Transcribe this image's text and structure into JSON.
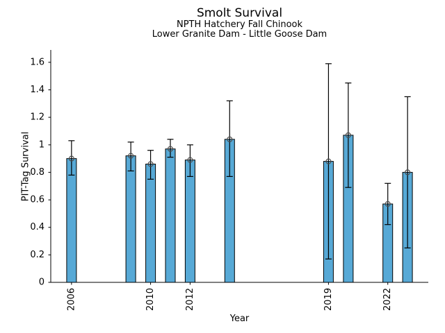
{
  "chart_data": {
    "type": "bar",
    "title": "Smolt Survival",
    "subtitle_line1": "NPTH Hatchery Fall Chinook",
    "subtitle_line2": "Lower Granite Dam - Little Goose Dam",
    "xlabel": "Year",
    "ylabel": "PIT-Tag Survival",
    "categories": [
      2006,
      2009,
      2010,
      2011,
      2012,
      2014,
      2019,
      2020,
      2022,
      2023
    ],
    "values": [
      0.9,
      0.92,
      0.86,
      0.97,
      0.89,
      1.04,
      0.88,
      1.07,
      0.57,
      0.8
    ],
    "error_low": [
      0.78,
      0.81,
      0.75,
      0.91,
      0.77,
      0.77,
      0.17,
      0.69,
      0.42,
      0.25
    ],
    "error_high": [
      1.03,
      1.02,
      0.96,
      1.04,
      1.0,
      1.32,
      1.59,
      1.45,
      0.72,
      1.35
    ],
    "xtick_years": [
      2006,
      2010,
      2012,
      2019,
      2022
    ],
    "ytick_values": [
      0,
      0.2,
      0.4,
      0.6,
      0.8,
      1,
      1.2,
      1.4,
      1.6
    ],
    "ytick_labels": [
      "0",
      "0.2",
      "0.4",
      "0.6",
      "0.8",
      "1",
      "1.2",
      "1.4",
      "1.6"
    ],
    "xlim": [
      2004.95,
      2024.05
    ],
    "ylim": [
      0,
      1.69
    ],
    "grid": false,
    "legend_position": "none",
    "marker": "open-circle",
    "bar_color": "#57a9d6",
    "bar_edge_color": "#000000",
    "errorbar_color": "#000000",
    "marker_edge_color": "#4d4d4d",
    "axis_color": "#000000",
    "background_color": "#ffffff"
  }
}
